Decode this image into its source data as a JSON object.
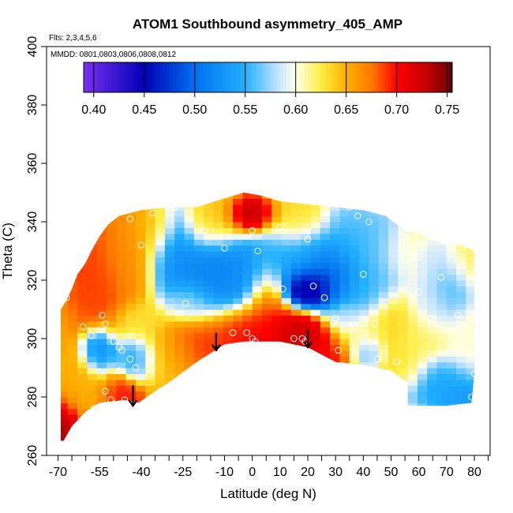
{
  "chart_data": {
    "type": "heatmap",
    "title": "ATOM1 Southbound asymmetry_405_AMP",
    "subtitle_flights": "Flts: 2,3,4,5,6",
    "subtitle_dates": "MMDD: 0801,0803,0806,0808,0812",
    "xlabel": "Latitude (deg N)",
    "ylabel": "Theta (C)",
    "xlim": [
      -70,
      85
    ],
    "ylim": [
      260,
      400
    ],
    "x_ticks": [
      -70,
      -55,
      -40,
      -25,
      -10,
      0,
      10,
      20,
      30,
      40,
      50,
      60,
      70,
      80
    ],
    "x_tick_labels": [
      "-70",
      "-55",
      "-40",
      "-25",
      "-10",
      "0",
      "10",
      "20",
      "30",
      "40",
      "50",
      "60",
      "70",
      "80"
    ],
    "x_minor_ticks": [
      -65,
      -60,
      -50,
      -45,
      -35,
      -30,
      -20,
      -15,
      -5,
      5,
      15,
      25,
      35,
      45,
      55,
      65,
      75,
      85
    ],
    "y_ticks": [
      260,
      280,
      300,
      320,
      340,
      360,
      380,
      400
    ],
    "y_tick_labels": [
      "260",
      "280",
      "300",
      "320",
      "340",
      "360",
      "380",
      "400"
    ],
    "colorbar": {
      "range": [
        0.39,
        0.755
      ],
      "ticks": [
        0.4,
        0.45,
        0.5,
        0.55,
        0.6,
        0.65,
        0.7,
        0.75
      ],
      "tick_labels": [
        "0.40",
        "0.45",
        "0.50",
        "0.55",
        "0.60",
        "0.65",
        "0.70",
        "0.75"
      ],
      "colors": [
        {
          "v": 0.39,
          "c": "#7a2ef0"
        },
        {
          "v": 0.45,
          "c": "#0000b4"
        },
        {
          "v": 0.5,
          "c": "#0070f0"
        },
        {
          "v": 0.55,
          "c": "#22b0ff"
        },
        {
          "v": 0.585,
          "c": "#cfe8ff"
        },
        {
          "v": 0.6,
          "c": "#ffffe8"
        },
        {
          "v": 0.625,
          "c": "#ffee44"
        },
        {
          "v": 0.65,
          "c": "#ffb000"
        },
        {
          "v": 0.675,
          "c": "#ff7a00"
        },
        {
          "v": 0.7,
          "c": "#ff0000"
        },
        {
          "v": 0.73,
          "c": "#c40000"
        },
        {
          "v": 0.755,
          "c": "#6a0000"
        }
      ]
    },
    "boundary_top": [
      [
        -69,
        310
      ],
      [
        -67,
        313
      ],
      [
        -65,
        317
      ],
      [
        -63,
        322
      ],
      [
        -60,
        326
      ],
      [
        -58,
        330
      ],
      [
        -55,
        335
      ],
      [
        -52,
        339
      ],
      [
        -48,
        342
      ],
      [
        -40,
        344
      ],
      [
        -30,
        345
      ],
      [
        -20,
        345
      ],
      [
        -10,
        348
      ],
      [
        -3,
        350
      ],
      [
        3,
        349
      ],
      [
        10,
        347
      ],
      [
        20,
        346
      ],
      [
        30,
        345
      ],
      [
        40,
        344
      ],
      [
        48,
        342
      ],
      [
        55,
        337
      ],
      [
        60,
        336
      ],
      [
        65,
        334
      ],
      [
        70,
        332
      ],
      [
        75,
        332
      ],
      [
        80,
        330
      ]
    ],
    "boundary_bottom": [
      [
        80,
        288
      ],
      [
        79,
        278
      ],
      [
        70,
        277
      ],
      [
        56,
        277
      ],
      [
        56,
        285
      ],
      [
        50,
        289
      ],
      [
        40,
        291
      ],
      [
        30,
        292
      ],
      [
        20,
        297
      ],
      [
        10,
        299
      ],
      [
        3,
        299
      ],
      [
        -3,
        299
      ],
      [
        -10,
        298
      ],
      [
        -20,
        292
      ],
      [
        -30,
        285
      ],
      [
        -35,
        282
      ],
      [
        -41,
        278
      ],
      [
        -46,
        279
      ],
      [
        -55,
        278
      ],
      [
        -60,
        275
      ],
      [
        -65,
        270
      ],
      [
        -68,
        265
      ],
      [
        -69,
        265
      ]
    ],
    "hot_spots": [
      {
        "x": -68,
        "y": 268,
        "v": 0.74,
        "sx": 4,
        "sy": 6
      },
      {
        "x": -60,
        "y": 282,
        "v": 0.65,
        "sx": 6,
        "sy": 6
      },
      {
        "x": -55,
        "y": 325,
        "v": 0.69,
        "sx": 6,
        "sy": 10
      },
      {
        "x": -45,
        "y": 330,
        "v": 0.66,
        "sx": 6,
        "sy": 8
      },
      {
        "x": -48,
        "y": 280,
        "v": 0.7,
        "sx": 4,
        "sy": 4
      },
      {
        "x": -40,
        "y": 305,
        "v": 0.63,
        "sx": 5,
        "sy": 4
      },
      {
        "x": -42,
        "y": 294,
        "v": 0.54,
        "sx": 4,
        "sy": 4
      },
      {
        "x": -55,
        "y": 295,
        "v": 0.52,
        "sx": 3,
        "sy": 4
      },
      {
        "x": -30,
        "y": 295,
        "v": 0.64,
        "sx": 6,
        "sy": 6
      },
      {
        "x": -22,
        "y": 298,
        "v": 0.69,
        "sx": 6,
        "sy": 5
      },
      {
        "x": -15,
        "y": 300,
        "v": 0.69,
        "sx": 7,
        "sy": 5
      },
      {
        "x": -3,
        "y": 300,
        "v": 0.7,
        "sx": 6,
        "sy": 6
      },
      {
        "x": 5,
        "y": 310,
        "v": 0.69,
        "sx": 4,
        "sy": 8
      },
      {
        "x": 10,
        "y": 300,
        "v": 0.72,
        "sx": 6,
        "sy": 5
      },
      {
        "x": 18,
        "y": 300,
        "v": 0.73,
        "sx": 5,
        "sy": 5
      },
      {
        "x": 25,
        "y": 296,
        "v": 0.7,
        "sx": 5,
        "sy": 4
      },
      {
        "x": 0,
        "y": 342,
        "v": 0.74,
        "sx": 5,
        "sy": 3
      },
      {
        "x": -15,
        "y": 340,
        "v": 0.64,
        "sx": 6,
        "sy": 5
      },
      {
        "x": 15,
        "y": 340,
        "v": 0.63,
        "sx": 6,
        "sy": 5
      },
      {
        "x": -35,
        "y": 338,
        "v": 0.65,
        "sx": 4,
        "sy": 5
      },
      {
        "x": -28,
        "y": 330,
        "v": 0.52,
        "sx": 5,
        "sy": 8
      },
      {
        "x": -15,
        "y": 322,
        "v": 0.51,
        "sx": 7,
        "sy": 8
      },
      {
        "x": -3,
        "y": 322,
        "v": 0.52,
        "sx": 6,
        "sy": 6
      },
      {
        "x": -22,
        "y": 312,
        "v": 0.58,
        "sx": 5,
        "sy": 4
      },
      {
        "x": 10,
        "y": 328,
        "v": 0.54,
        "sx": 6,
        "sy": 6
      },
      {
        "x": 20,
        "y": 328,
        "v": 0.54,
        "sx": 5,
        "sy": 5
      },
      {
        "x": 20,
        "y": 318,
        "v": 0.41,
        "sx": 5,
        "sy": 4
      },
      {
        "x": 28,
        "y": 322,
        "v": 0.47,
        "sx": 6,
        "sy": 6
      },
      {
        "x": 35,
        "y": 330,
        "v": 0.55,
        "sx": 7,
        "sy": 8
      },
      {
        "x": 45,
        "y": 330,
        "v": 0.56,
        "sx": 6,
        "sy": 8
      },
      {
        "x": 40,
        "y": 316,
        "v": 0.55,
        "sx": 6,
        "sy": 5
      },
      {
        "x": 34,
        "y": 308,
        "v": 0.58,
        "sx": 4,
        "sy": 3
      },
      {
        "x": 40,
        "y": 302,
        "v": 0.61,
        "sx": 6,
        "sy": 4
      },
      {
        "x": 42,
        "y": 296,
        "v": 0.56,
        "sx": 3,
        "sy": 3
      },
      {
        "x": 50,
        "y": 305,
        "v": 0.64,
        "sx": 5,
        "sy": 6
      },
      {
        "x": 60,
        "y": 300,
        "v": 0.62,
        "sx": 6,
        "sy": 6
      },
      {
        "x": 65,
        "y": 312,
        "v": 0.58,
        "sx": 5,
        "sy": 6
      },
      {
        "x": 72,
        "y": 318,
        "v": 0.55,
        "sx": 4,
        "sy": 6
      },
      {
        "x": 55,
        "y": 330,
        "v": 0.61,
        "sx": 5,
        "sy": 5
      },
      {
        "x": 65,
        "y": 327,
        "v": 0.58,
        "sx": 5,
        "sy": 4
      },
      {
        "x": 76,
        "y": 326,
        "v": 0.62,
        "sx": 4,
        "sy": 5
      },
      {
        "x": 76,
        "y": 300,
        "v": 0.6,
        "sx": 4,
        "sy": 6
      },
      {
        "x": 68,
        "y": 285,
        "v": 0.54,
        "sx": 7,
        "sy": 5
      },
      {
        "x": 75,
        "y": 280,
        "v": 0.53,
        "sx": 5,
        "sy": 3
      },
      {
        "x": 55,
        "y": 290,
        "v": 0.63,
        "sx": 4,
        "sy": 4
      }
    ],
    "base_value": 0.655,
    "observation_points": [
      [
        -67,
        314
      ],
      [
        -61,
        304
      ],
      [
        -58,
        301
      ],
      [
        -54,
        308
      ],
      [
        -53,
        305
      ],
      [
        -50,
        299
      ],
      [
        -48,
        297
      ],
      [
        -47,
        296
      ],
      [
        -44,
        293
      ],
      [
        -42,
        290
      ],
      [
        -48,
        289
      ],
      [
        -37,
        288
      ],
      [
        -51,
        279
      ],
      [
        -46,
        279
      ],
      [
        -57,
        276
      ],
      [
        -53,
        282
      ],
      [
        -44,
        341
      ],
      [
        -40,
        332
      ],
      [
        -36,
        343
      ],
      [
        -28,
        345
      ],
      [
        -24,
        312
      ],
      [
        -17,
        337
      ],
      [
        -10,
        331
      ],
      [
        -7,
        302
      ],
      [
        -2,
        302
      ],
      [
        0,
        300
      ],
      [
        1,
        299
      ],
      [
        2,
        330
      ],
      [
        0,
        337
      ],
      [
        10,
        338
      ],
      [
        11,
        317
      ],
      [
        15,
        300
      ],
      [
        18,
        300
      ],
      [
        19,
        299
      ],
      [
        20,
        334
      ],
      [
        22,
        318
      ],
      [
        26,
        314
      ],
      [
        30,
        307
      ],
      [
        31,
        296
      ],
      [
        35,
        345
      ],
      [
        38,
        342
      ],
      [
        42,
        340
      ],
      [
        40,
        322
      ],
      [
        44,
        305
      ],
      [
        45,
        293
      ],
      [
        52,
        292
      ],
      [
        56,
        330
      ],
      [
        60,
        316
      ],
      [
        60,
        328
      ],
      [
        64,
        307
      ],
      [
        68,
        321
      ],
      [
        72,
        327
      ],
      [
        74,
        308
      ],
      [
        80,
        288
      ],
      [
        79,
        280
      ]
    ],
    "arrows": [
      {
        "x": -43,
        "y_from": 284,
        "y_to": 277
      },
      {
        "x": -13,
        "y_from": 302,
        "y_to": 296
      },
      {
        "x": 20,
        "y_from": 303,
        "y_to": 297
      }
    ]
  }
}
